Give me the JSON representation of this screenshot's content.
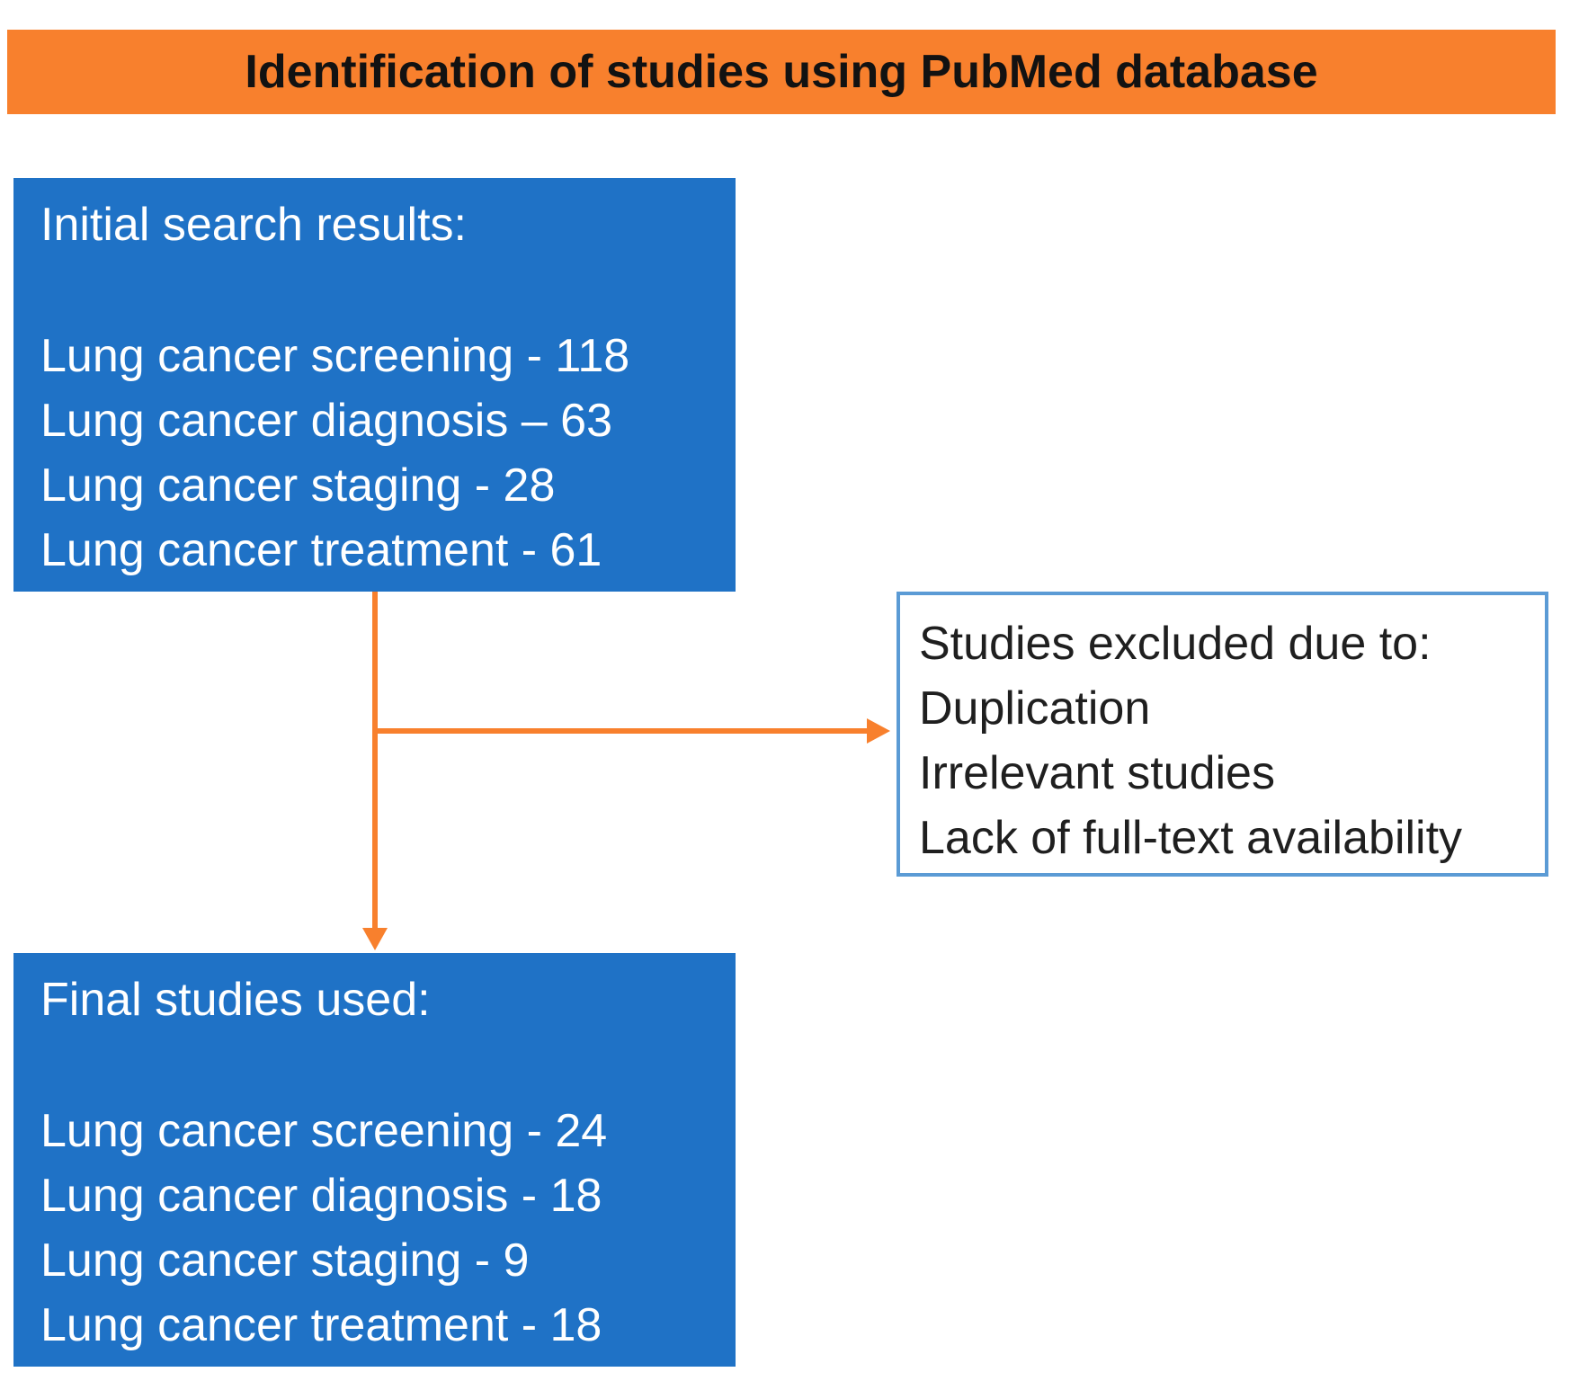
{
  "title": "Identification of studies using PubMed database",
  "colors": {
    "banner_orange": "#F8802D",
    "arrow_orange": "#F8802D",
    "process_blue": "#1F72C6",
    "excluded_border_blue": "#5B9BD5",
    "banner_text": "#121212",
    "excluded_text": "#1F1F1F"
  },
  "initial_box": {
    "heading": "Initial search results:",
    "items": [
      "Lung cancer screening - 118",
      "Lung cancer diagnosis – 63",
      "Lung cancer staging - 28",
      "Lung cancer treatment - 61"
    ]
  },
  "excluded_box": {
    "heading": "Studies excluded due to:",
    "items": [
      "Duplication",
      "Irrelevant studies",
      "Lack of full-text availability"
    ]
  },
  "final_box": {
    "heading": "Final studies used:",
    "items": [
      "Lung cancer screening - 24",
      "Lung cancer diagnosis - 18",
      "Lung cancer staging - 9",
      "Lung cancer treatment - 18"
    ]
  }
}
